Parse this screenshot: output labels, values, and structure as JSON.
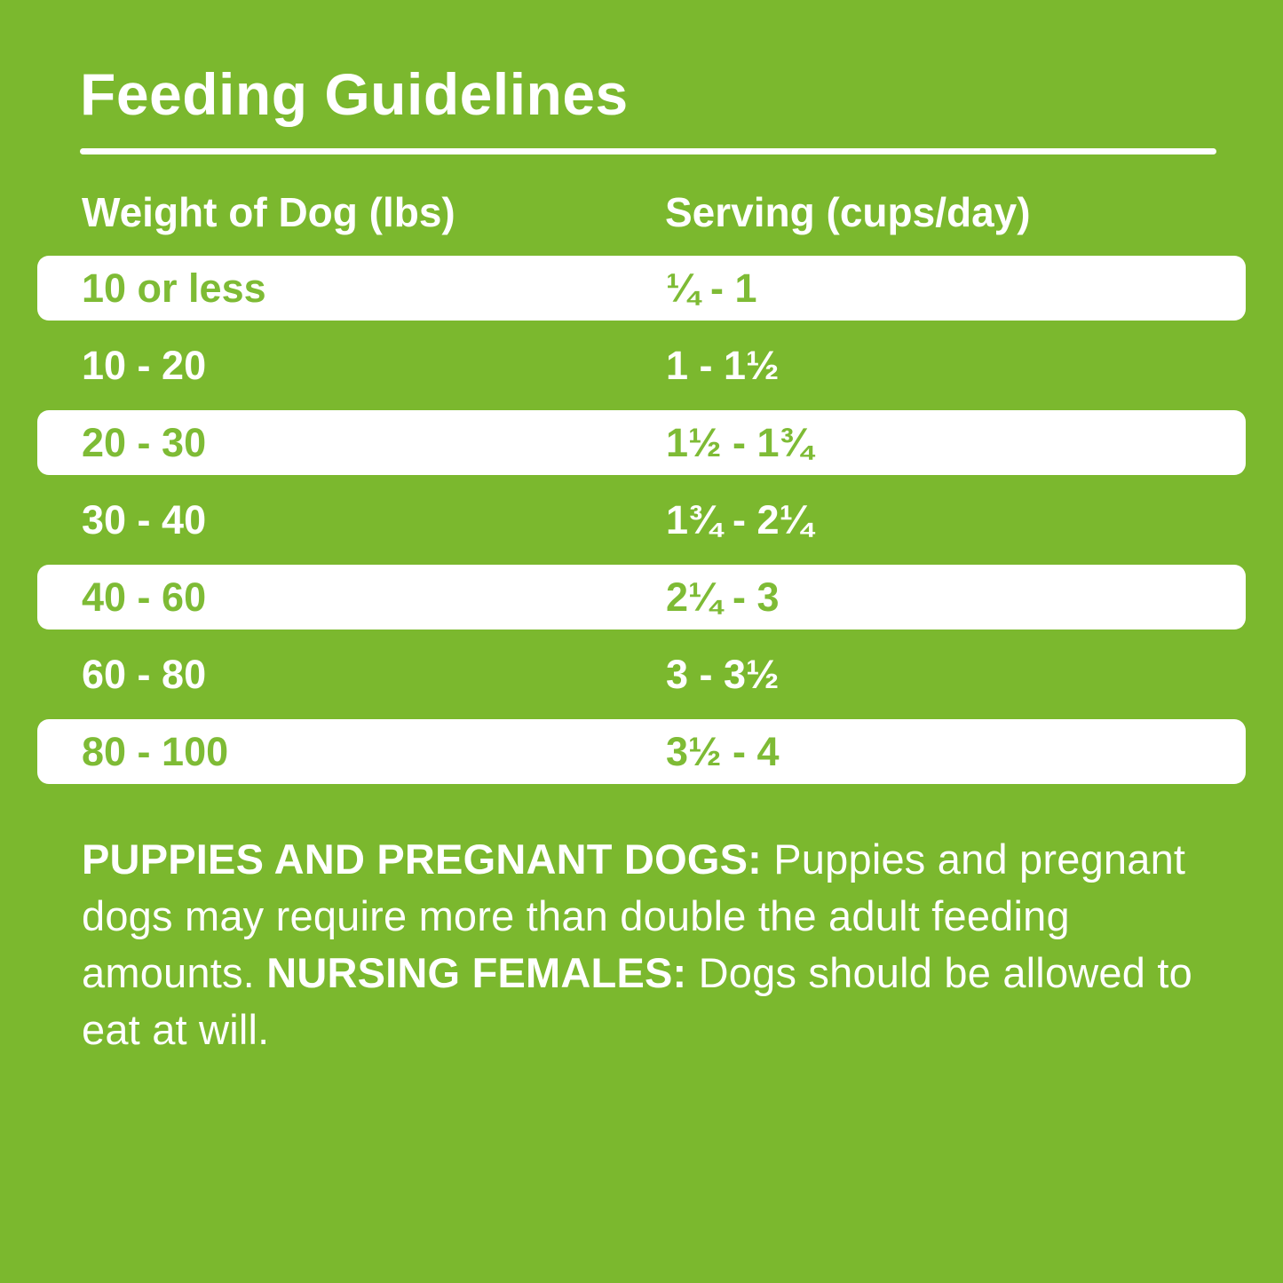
{
  "page": {
    "title": "Feeding Guidelines"
  },
  "colors": {
    "background_green": "#7BB82E",
    "row_white": "#FFFFFF",
    "text_on_green": "#FFFFFF",
    "text_on_white": "#7EBB35"
  },
  "table": {
    "headers": {
      "weight": "Weight of Dog (lbs)",
      "serving": "Serving (cups/day)"
    },
    "rows": [
      {
        "weight": "10 or less",
        "serving": "¼ - 1"
      },
      {
        "weight": "10 - 20",
        "serving": "1 - 1½"
      },
      {
        "weight": "20 - 30",
        "serving": "1½ - 1¾"
      },
      {
        "weight": "30 - 40",
        "serving": "1¾ - 2¼"
      },
      {
        "weight": "40 - 60",
        "serving": "2¼ - 3"
      },
      {
        "weight": "60 - 80",
        "serving": "3 - 3½"
      },
      {
        "weight": "80 - 100",
        "serving": "3½ - 4"
      }
    ]
  },
  "note": {
    "bold1": "PUPPIES AND PREGNANT DOGS:",
    "text1": " Puppies and pregnant dogs may require more than double the adult feeding amounts. ",
    "bold2": "NURSING FEMALES:",
    "text2": " Dogs should be allowed to eat at will."
  },
  "chart_data": {
    "type": "table",
    "title": "Feeding Guidelines",
    "columns": [
      "Weight of Dog (lbs)",
      "Serving (cups/day)"
    ],
    "rows": [
      [
        "10 or less",
        "¼ - 1"
      ],
      [
        "10 - 20",
        "1 - 1½"
      ],
      [
        "20 - 30",
        "1½ - 1¾"
      ],
      [
        "30 - 40",
        "1¾ - 2¼"
      ],
      [
        "40 - 60",
        "2¼ - 3"
      ],
      [
        "60 - 80",
        "3 - 3½"
      ],
      [
        "80 - 100",
        "3½ - 4"
      ]
    ],
    "servings_numeric_cups_per_day": [
      {
        "weight_lbs_min": 0,
        "weight_lbs_max": 10,
        "cups_min": 0.25,
        "cups_max": 1
      },
      {
        "weight_lbs_min": 10,
        "weight_lbs_max": 20,
        "cups_min": 1,
        "cups_max": 1.5
      },
      {
        "weight_lbs_min": 20,
        "weight_lbs_max": 30,
        "cups_min": 1.5,
        "cups_max": 1.75
      },
      {
        "weight_lbs_min": 30,
        "weight_lbs_max": 40,
        "cups_min": 1.75,
        "cups_max": 2.25
      },
      {
        "weight_lbs_min": 40,
        "weight_lbs_max": 60,
        "cups_min": 2.25,
        "cups_max": 3
      },
      {
        "weight_lbs_min": 60,
        "weight_lbs_max": 80,
        "cups_min": 3,
        "cups_max": 3.5
      },
      {
        "weight_lbs_min": 80,
        "weight_lbs_max": 100,
        "cups_min": 3.5,
        "cups_max": 4
      }
    ],
    "layout": {
      "highlighted_row_indices": [
        0,
        2,
        4,
        6
      ],
      "note_present": true
    }
  }
}
